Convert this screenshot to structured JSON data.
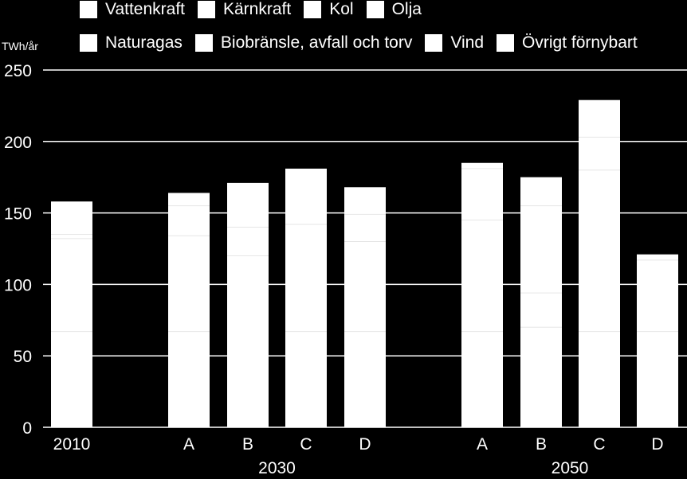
{
  "chart_data": {
    "type": "bar",
    "stacked": true,
    "ylabel": "TWh/år",
    "ylim": [
      0,
      250
    ],
    "yticks": [
      0,
      50,
      100,
      150,
      200,
      250
    ],
    "grid": true,
    "legend_position": "top",
    "legend": [
      "Vattenkraft",
      "Kärnkraft",
      "Kol",
      "Olja",
      "Naturagas",
      "Biobränsle, avfall och torv",
      "Vind",
      "Övrigt förnybart"
    ],
    "groups": [
      "",
      "2030",
      "2050"
    ],
    "categories": [
      {
        "label": "2010",
        "group": ""
      },
      {
        "label": "A",
        "group": "2030"
      },
      {
        "label": "B",
        "group": "2030"
      },
      {
        "label": "C",
        "group": "2030"
      },
      {
        "label": "D",
        "group": "2030"
      },
      {
        "label": "A",
        "group": "2050"
      },
      {
        "label": "B",
        "group": "2050"
      },
      {
        "label": "C",
        "group": "2050"
      },
      {
        "label": "D",
        "group": "2050"
      }
    ],
    "totals": [
      158,
      164,
      171,
      181,
      168,
      185,
      175,
      229,
      121
    ],
    "segment_boundaries": [
      [
        67,
        132,
        135
      ],
      [
        67,
        134,
        155
      ],
      [
        120,
        140
      ],
      [
        67,
        142
      ],
      [
        67,
        130,
        149
      ],
      [
        67,
        145,
        181
      ],
      [
        70,
        94,
        155
      ],
      [
        67,
        180,
        203
      ],
      [
        67,
        117
      ]
    ]
  }
}
